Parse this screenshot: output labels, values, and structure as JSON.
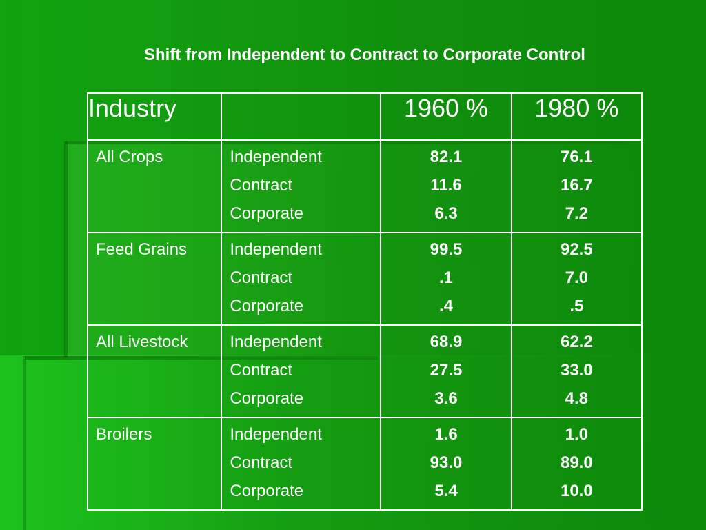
{
  "slide": {
    "title": "Shift from Independent to Contract to Corporate Control"
  },
  "table": {
    "headers": [
      "Industry",
      "",
      "1960 %",
      "1980 %"
    ],
    "rows": [
      {
        "industry": "All Crops",
        "controls": [
          "Independent",
          "Contract",
          "Corporate"
        ],
        "y1960": [
          "82.1",
          "11.6",
          "6.3"
        ],
        "y1980": [
          "76.1",
          "16.7",
          "7.2"
        ]
      },
      {
        "industry": "Feed Grains",
        "controls": [
          "Independent",
          "Contract",
          "Corporate"
        ],
        "y1960": [
          "99.5",
          ".1",
          ".4"
        ],
        "y1980": [
          "92.5",
          "7.0",
          ".5"
        ]
      },
      {
        "industry": "All Livestock",
        "controls": [
          "Independent",
          "Contract",
          "Corporate"
        ],
        "y1960": [
          "68.9",
          "27.5",
          "3.6"
        ],
        "y1980": [
          "62.2",
          "33.0",
          "4.8"
        ]
      },
      {
        "industry": "Broilers",
        "controls": [
          "Independent",
          "Contract",
          "Corporate"
        ],
        "y1960": [
          "1.6",
          "93.0",
          "5.4"
        ],
        "y1980": [
          "1.0",
          "89.0",
          "10.0"
        ]
      }
    ]
  },
  "colors": {
    "background": "#109a0d",
    "text": "#ffffff",
    "table_border": "#ffffff"
  }
}
